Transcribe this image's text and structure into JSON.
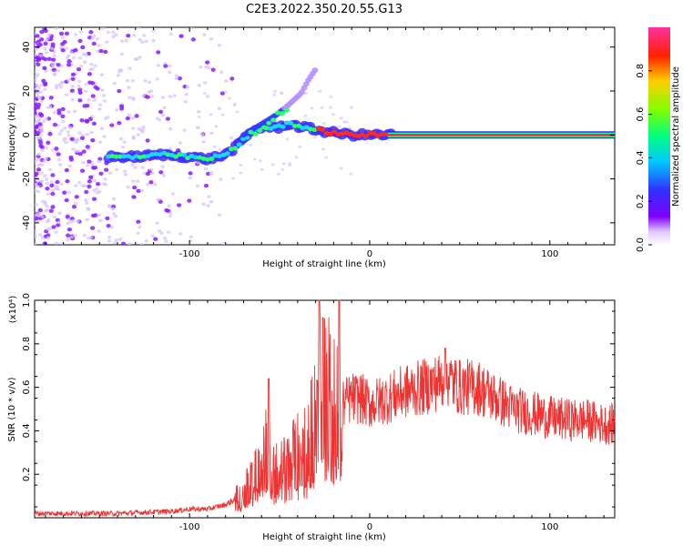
{
  "title": "C2E3.2022.350.20.55.G13",
  "chart_data": [
    {
      "type": "heatmap",
      "panel": "spectrogram",
      "xlabel": "Height of straight line (km)",
      "ylabel": "Frequency (Hz)",
      "xlim": [
        -186,
        136
      ],
      "ylim": [
        -50,
        49
      ],
      "x_ticks": [
        -100,
        0,
        100
      ],
      "y_ticks": [
        -40,
        -20,
        0,
        20,
        40
      ],
      "colorbar": {
        "label": "Normalized spectral amplitude",
        "range": [
          0,
          1
        ],
        "ticks": [
          "0.0",
          "0.2",
          "0.4",
          "0.6",
          "0.8"
        ],
        "colormap": "rainbow (white → violet → blue → cyan → green → yellow → red → magenta)"
      },
      "ridge": {
        "x": [
          -145,
          -130,
          -115,
          -100,
          -90,
          -80,
          -72,
          -65,
          -58,
          -52,
          -46,
          -40,
          -34,
          -28,
          -20,
          -10,
          0,
          10,
          30,
          60,
          100,
          136
        ],
        "y": [
          -10,
          -10,
          -9,
          -10,
          -11,
          -9,
          -4,
          2,
          4,
          3,
          5,
          4,
          3,
          2,
          1,
          0,
          0,
          0,
          0,
          0,
          0,
          0
        ]
      },
      "branch": {
        "x": [
          -70,
          -60,
          -52,
          -46,
          -42,
          -38,
          -34,
          -30
        ],
        "y": [
          0,
          5,
          9,
          13,
          16,
          19,
          25,
          30
        ]
      }
    },
    {
      "type": "line",
      "panel": "snr",
      "xlabel": "Height of straight line (km)",
      "ylabel": "SNR (10 * v/v)",
      "y_multiplier": "(x10⁴)",
      "xlim": [
        -186,
        136
      ],
      "ylim": [
        0,
        1.0
      ],
      "x_ticks": [
        -100,
        0,
        100
      ],
      "y_ticks": [
        "0.2",
        "0.4",
        "0.6",
        "0.8",
        "1.0"
      ],
      "color": "#ee3333",
      "envelope": {
        "x": [
          -186,
          -140,
          -110,
          -100,
          -90,
          -80,
          -72,
          -66,
          -62,
          -58,
          -54,
          -50,
          -45,
          -40,
          -34,
          -30,
          -28,
          -25,
          -22,
          -20,
          -16,
          -10,
          -5,
          0,
          10,
          20,
          30,
          40,
          42,
          45,
          50,
          60,
          70,
          80,
          90,
          100,
          110,
          120,
          130,
          136
        ],
        "y": [
          0.02,
          0.02,
          0.03,
          0.04,
          0.04,
          0.06,
          0.1,
          0.18,
          0.25,
          0.35,
          0.22,
          0.2,
          0.25,
          0.3,
          0.35,
          0.45,
          0.55,
          0.6,
          0.55,
          0.5,
          0.52,
          0.55,
          0.55,
          0.52,
          0.55,
          0.58,
          0.6,
          0.63,
          0.67,
          0.63,
          0.6,
          0.6,
          0.55,
          0.5,
          0.48,
          0.46,
          0.45,
          0.45,
          0.43,
          0.43
        ]
      },
      "spikes": [
        {
          "x": -56,
          "y": 0.64
        },
        {
          "x": -28,
          "y": 1.0
        },
        {
          "x": -26,
          "y": 0.92
        },
        {
          "x": -17,
          "y": 1.0
        },
        {
          "x": 42,
          "y": 0.78
        }
      ]
    }
  ]
}
